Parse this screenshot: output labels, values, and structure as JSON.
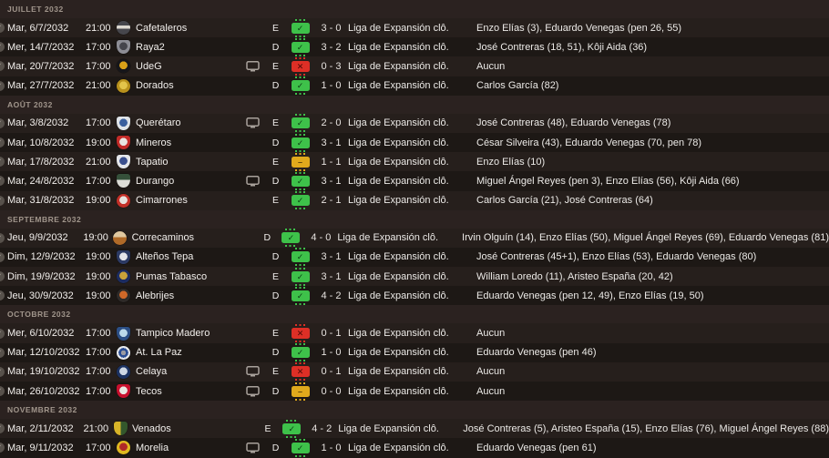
{
  "competition_abbr": "Liga de Expansión clô.",
  "result_glyphs": {
    "win": "✓",
    "loss": "✕",
    "draw": "–"
  },
  "palette": {
    "win": "#3ec14a",
    "loss": "#dd2f26",
    "draw": "#e0a91c",
    "row_light": "#261f1c",
    "row_dark": "#1d1815",
    "month_bg": "#2b2220"
  },
  "groups": [
    {
      "month": "JUILLET 2032",
      "matches": [
        {
          "date": "Mar, 6/7/2032",
          "time": "21:00",
          "team": "Cafetaleros",
          "tv": false,
          "venue": "E",
          "result": "win",
          "score": "3 - 0",
          "competition": "Liga de Expansión clô.",
          "scorers": "Enzo Elías (3), Eduardo Venegas (pen 26, 55)",
          "logo": {
            "shape": "circle",
            "pattern": "band",
            "colors": [
              "#46464c",
              "#ddd8d0"
            ]
          }
        },
        {
          "date": "Mer, 14/7/2032",
          "time": "17:00",
          "team": "Raya2",
          "tv": false,
          "venue": "D",
          "result": "win",
          "score": "3 - 2",
          "competition": "Liga de Expansión clô.",
          "scorers": "José Contreras (18, 51), Kôji Aida (36)",
          "logo": {
            "shape": "shield",
            "pattern": "core",
            "colors": [
              "#8d8d95",
              "#45454c"
            ]
          }
        },
        {
          "date": "Mar, 20/7/2032",
          "time": "17:00",
          "team": "UdeG",
          "tv": true,
          "venue": "E",
          "result": "loss",
          "score": "0 - 3",
          "competition": "Liga de Expansión clô.",
          "scorers": "Aucun",
          "logo": {
            "shape": "circle",
            "pattern": "core",
            "colors": [
              "#16161a",
              "#d8a018"
            ]
          }
        },
        {
          "date": "Mar, 27/7/2032",
          "time": "21:00",
          "team": "Dorados",
          "tv": false,
          "venue": "D",
          "result": "win",
          "score": "1 - 0",
          "competition": "Liga de Expansión clô.",
          "scorers": "Carlos García (82)",
          "logo": {
            "shape": "circle",
            "pattern": "core",
            "colors": [
              "#b8911c",
              "#e3c44a"
            ]
          }
        }
      ]
    },
    {
      "month": "AOÛT 2032",
      "matches": [
        {
          "date": "Mar, 3/8/2032",
          "time": "17:00",
          "team": "Querétaro",
          "tv": true,
          "venue": "E",
          "result": "win",
          "score": "2 - 0",
          "competition": "Liga de Expansión clô.",
          "scorers": "José Contreras (48), Eduardo Venegas (78)",
          "logo": {
            "shape": "shield",
            "pattern": "core",
            "colors": [
              "#dfe3e8",
              "#3a5f9e"
            ]
          }
        },
        {
          "date": "Mar, 10/8/2032",
          "time": "19:00",
          "team": "Mineros",
          "tv": false,
          "venue": "D",
          "result": "win",
          "score": "3 - 1",
          "competition": "Liga de Expansión clô.",
          "scorers": "César Silveira (43), Eduardo Venegas (70, pen 78)",
          "logo": {
            "shape": "shield",
            "pattern": "core",
            "colors": [
              "#c22b28",
              "#e8e4e0"
            ]
          }
        },
        {
          "date": "Mar, 17/8/2032",
          "time": "21:00",
          "team": "Tapatio",
          "tv": false,
          "venue": "E",
          "result": "draw",
          "score": "1 - 1",
          "competition": "Liga de Expansión clô.",
          "scorers": "Enzo Elías (10)",
          "logo": {
            "shape": "shield",
            "pattern": "core",
            "colors": [
              "#e4e6ea",
              "#3a4f8e"
            ]
          }
        },
        {
          "date": "Mar, 24/8/2032",
          "time": "17:00",
          "team": "Durango",
          "tv": true,
          "venue": "D",
          "result": "win",
          "score": "3 - 1",
          "competition": "Liga de Expansión clô.",
          "scorers": "Miguel Ángel Reyes (pen 3), Enzo Elías (56), Kôji Aida (66)",
          "logo": {
            "shape": "shield",
            "pattern": "half",
            "colors": [
              "#dcdcd6",
              "#35503a"
            ]
          }
        },
        {
          "date": "Mar, 31/8/2032",
          "time": "19:00",
          "team": "Cimarrones",
          "tv": false,
          "venue": "E",
          "result": "win",
          "score": "2 - 1",
          "competition": "Liga de Expansión clô.",
          "scorers": "Carlos García (21), José Contreras (64)",
          "logo": {
            "shape": "circle",
            "pattern": "core",
            "colors": [
              "#c23028",
              "#e6e2de"
            ]
          }
        }
      ]
    },
    {
      "month": "SEPTEMBRE 2032",
      "matches": [
        {
          "date": "Jeu, 9/9/2032",
          "time": "19:00",
          "team": "Correcaminos",
          "tv": false,
          "venue": "D",
          "result": "win",
          "score": "4 - 0",
          "competition": "Liga de Expansión clô.",
          "scorers": "Irvin Olguín (14), Enzo Elías (50), Miguel Ángel Reyes (69), Eduardo Venegas (81)",
          "logo": {
            "shape": "circle",
            "pattern": "half",
            "colors": [
              "#b06a28",
              "#e0c9a0"
            ]
          }
        },
        {
          "date": "Dim, 12/9/2032",
          "time": "19:00",
          "team": "Alteños Tepa",
          "tv": false,
          "venue": "D",
          "result": "win",
          "score": "3 - 1",
          "competition": "Liga de Expansión clô.",
          "scorers": "José Contreras (45+1), Enzo Elías (53), Eduardo Venegas (80)",
          "logo": {
            "shape": "shield",
            "pattern": "core",
            "colors": [
              "#2c3a64",
              "#e4e4ea"
            ]
          }
        },
        {
          "date": "Dim, 19/9/2032",
          "time": "19:00",
          "team": "Pumas Tabasco",
          "tv": false,
          "venue": "E",
          "result": "win",
          "score": "3 - 1",
          "competition": "Liga de Expansión clô.",
          "scorers": "William Loredo (11), Aristeo España (20, 42)",
          "logo": {
            "shape": "circle",
            "pattern": "core",
            "colors": [
              "#1c2c60",
              "#c9a23a"
            ]
          }
        },
        {
          "date": "Jeu, 30/9/2032",
          "time": "19:00",
          "team": "Alebrijes",
          "tv": false,
          "venue": "D",
          "result": "win",
          "score": "4 - 2",
          "competition": "Liga de Expansión clô.",
          "scorers": "Eduardo Venegas (pen 12, 49), Enzo Elías (19, 50)",
          "logo": {
            "shape": "circle",
            "pattern": "core",
            "colors": [
              "#2e2a28",
              "#d06828"
            ]
          }
        }
      ]
    },
    {
      "month": "OCTOBRE 2032",
      "matches": [
        {
          "date": "Mer, 6/10/2032",
          "time": "17:00",
          "team": "Tampico Madero",
          "tv": false,
          "venue": "E",
          "result": "loss",
          "score": "0 - 1",
          "competition": "Liga de Expansión clô.",
          "scorers": "Aucun",
          "logo": {
            "shape": "shield",
            "pattern": "core",
            "colors": [
              "#2c4f86",
              "#bcd9ea"
            ]
          }
        },
        {
          "date": "Mar, 12/10/2032",
          "time": "17:00",
          "team": "At. La Paz",
          "tv": false,
          "venue": "D",
          "result": "win",
          "score": "1 - 0",
          "competition": "Liga de Expansión clô.",
          "scorers": "Eduardo Venegas (pen 46)",
          "logo": {
            "shape": "circle",
            "pattern": "rings",
            "colors": [
              "#38507c",
              "#e6e8ec"
            ]
          }
        },
        {
          "date": "Mar, 19/10/2032",
          "time": "17:00",
          "team": "Celaya",
          "tv": true,
          "venue": "E",
          "result": "loss",
          "score": "0 - 1",
          "competition": "Liga de Expansión clô.",
          "scorers": "Aucun",
          "logo": {
            "shape": "circle",
            "pattern": "core",
            "colors": [
              "#1c3262",
              "#cdd6e4"
            ]
          }
        },
        {
          "date": "Mar, 26/10/2032",
          "time": "17:00",
          "team": "Tecos",
          "tv": true,
          "venue": "D",
          "result": "draw",
          "score": "0 - 0",
          "competition": "Liga de Expansión clô.",
          "scorers": "Aucun",
          "logo": {
            "shape": "shield",
            "pattern": "core",
            "colors": [
              "#c8102e",
              "#e8e6e2"
            ]
          }
        }
      ]
    },
    {
      "month": "NOVEMBRE 2032",
      "matches": [
        {
          "date": "Mar, 2/11/2032",
          "time": "21:00",
          "team": "Venados",
          "tv": false,
          "venue": "E",
          "result": "win",
          "score": "4 - 2",
          "competition": "Liga de Expansión clô.",
          "scorers": "José Contreras (5), Aristeo España (15), Enzo Elías (76), Miguel Ángel Reyes (88)",
          "logo": {
            "shape": "shield",
            "pattern": "halfv",
            "colors": [
              "#d8b428",
              "#34582c"
            ]
          }
        },
        {
          "date": "Mar, 9/11/2032",
          "time": "17:00",
          "team": "Morelia",
          "tv": true,
          "venue": "D",
          "result": "win",
          "score": "1 - 0",
          "competition": "Liga de Expansión clô.",
          "scorers": "Eduardo Venegas (pen 61)",
          "logo": {
            "shape": "circle",
            "pattern": "core",
            "colors": [
              "#e0b820",
              "#b02828"
            ]
          }
        }
      ]
    }
  ]
}
